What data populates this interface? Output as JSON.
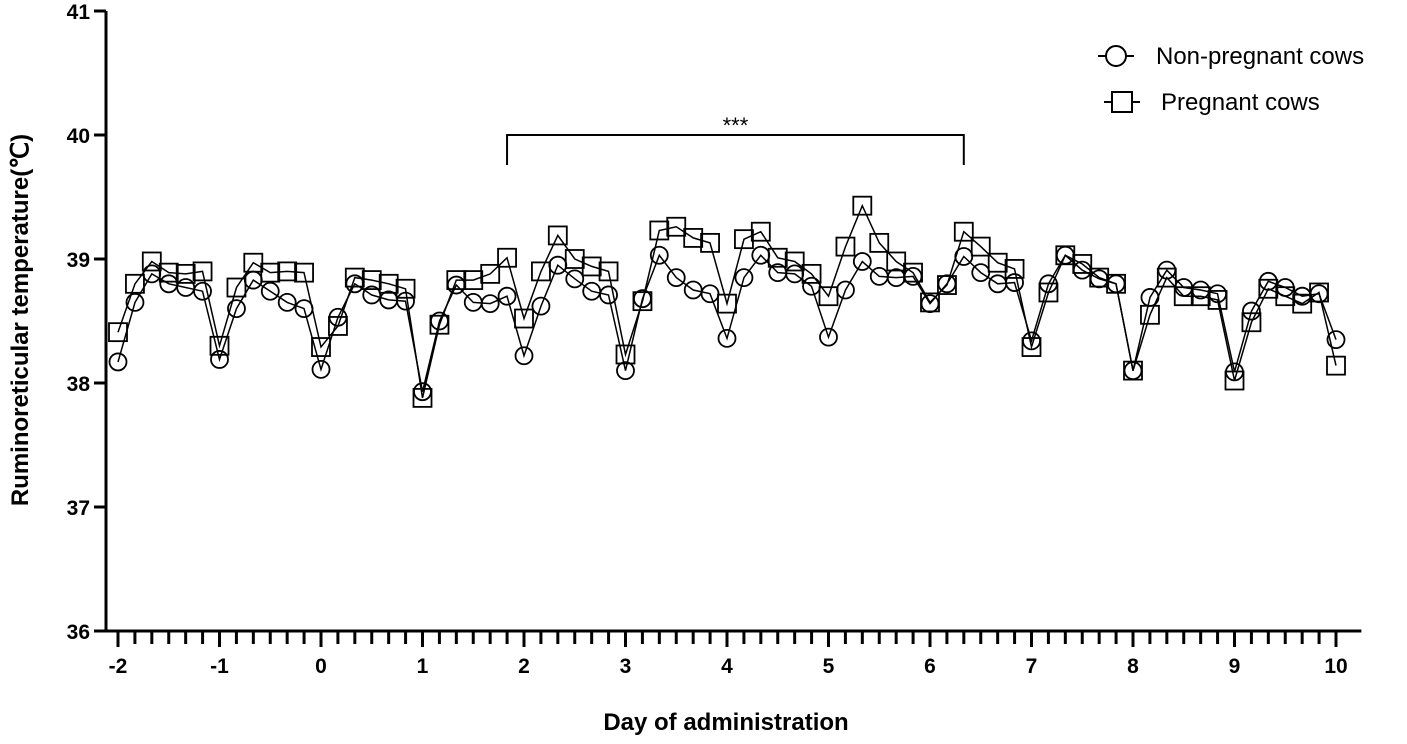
{
  "chart_data": {
    "type": "line",
    "title": "",
    "xlabel": "Day of administration",
    "ylabel": "Ruminoreticular temperature(℃)",
    "xlim": [
      -2.1,
      10.25
    ],
    "ylim": [
      36,
      41
    ],
    "xticks_major": [
      -2,
      -1,
      0,
      1,
      2,
      3,
      4,
      5,
      6,
      7,
      8,
      9,
      10
    ],
    "xtick_labels": [
      "-2",
      "-1",
      "0",
      "1",
      "2",
      "3",
      "4",
      "5",
      "6",
      "7",
      "8",
      "9",
      "10"
    ],
    "yticks": [
      36,
      37,
      38,
      39,
      40,
      41
    ],
    "ytick_labels": [
      "36",
      "37",
      "38",
      "39",
      "40",
      "41"
    ],
    "legend_position": "top-right",
    "series": [
      {
        "name": "Non-pregnant cows",
        "marker": "circle",
        "x": [
          -2,
          -1.833,
          -1.667,
          -1.5,
          -1.333,
          -1.167,
          -1,
          -0.833,
          -0.667,
          -0.5,
          -0.333,
          -0.167,
          0,
          0.167,
          0.333,
          0.5,
          0.667,
          0.833,
          1,
          1.167,
          1.333,
          1.5,
          1.667,
          1.833,
          2,
          2.167,
          2.333,
          2.5,
          2.667,
          2.833,
          3,
          3.167,
          3.333,
          3.5,
          3.667,
          3.833,
          4,
          4.167,
          4.333,
          4.5,
          4.667,
          4.833,
          5,
          5.167,
          5.333,
          5.5,
          5.667,
          5.833,
          6,
          6.167,
          6.333,
          6.5,
          6.667,
          6.833,
          7,
          7.167,
          7.333,
          7.5,
          7.667,
          7.833,
          8,
          8.167,
          8.333,
          8.5,
          8.667,
          8.833,
          9,
          9.167,
          9.333,
          9.5,
          9.667,
          9.833,
          10
        ],
        "values": [
          38.17,
          38.65,
          38.88,
          38.8,
          38.77,
          38.74,
          38.19,
          38.6,
          38.83,
          38.74,
          38.65,
          38.6,
          38.11,
          38.53,
          38.8,
          38.71,
          38.67,
          38.66,
          37.93,
          38.5,
          38.79,
          38.65,
          38.64,
          38.7,
          38.22,
          38.62,
          38.95,
          38.84,
          38.74,
          38.71,
          38.1,
          38.68,
          39.03,
          38.85,
          38.75,
          38.72,
          38.36,
          38.85,
          39.03,
          38.89,
          38.88,
          38.78,
          38.37,
          38.75,
          38.98,
          38.86,
          38.85,
          38.86,
          38.64,
          38.8,
          39.02,
          38.89,
          38.8,
          38.81,
          38.34,
          38.8,
          39.03,
          38.91,
          38.84,
          38.8,
          38.1,
          38.69,
          38.91,
          38.77,
          38.75,
          38.72,
          38.09,
          38.58,
          38.82,
          38.77,
          38.7,
          38.72,
          38.35
        ]
      },
      {
        "name": "Pregnant cows",
        "marker": "square",
        "x": [
          -2,
          -1.833,
          -1.667,
          -1.5,
          -1.333,
          -1.167,
          -1,
          -0.833,
          -0.667,
          -0.5,
          -0.333,
          -0.167,
          0,
          0.167,
          0.333,
          0.5,
          0.667,
          0.833,
          1,
          1.167,
          1.333,
          1.5,
          1.667,
          1.833,
          2,
          2.167,
          2.333,
          2.5,
          2.667,
          2.833,
          3,
          3.167,
          3.333,
          3.5,
          3.667,
          3.833,
          4,
          4.167,
          4.333,
          4.5,
          4.667,
          4.833,
          5,
          5.167,
          5.333,
          5.5,
          5.667,
          5.833,
          6,
          6.167,
          6.333,
          6.5,
          6.667,
          6.833,
          7,
          7.167,
          7.333,
          7.5,
          7.667,
          7.833,
          8,
          8.167,
          8.333,
          8.5,
          8.667,
          8.833,
          9,
          9.167,
          9.333,
          9.5,
          9.667,
          9.833,
          10
        ],
        "values": [
          38.41,
          38.8,
          38.98,
          38.89,
          38.88,
          38.9,
          38.3,
          38.77,
          38.97,
          38.89,
          38.9,
          38.89,
          38.29,
          38.46,
          38.85,
          38.83,
          38.8,
          38.76,
          37.88,
          38.47,
          38.83,
          38.83,
          38.88,
          39.01,
          38.52,
          38.9,
          39.19,
          39.0,
          38.94,
          38.9,
          38.23,
          38.66,
          39.23,
          39.26,
          39.17,
          39.13,
          38.64,
          39.16,
          39.22,
          39.01,
          38.98,
          38.88,
          38.7,
          39.1,
          39.43,
          39.13,
          38.98,
          38.89,
          38.65,
          38.79,
          39.22,
          39.1,
          38.97,
          38.92,
          38.29,
          38.73,
          39.03,
          38.96,
          38.85,
          38.8,
          38.1,
          38.55,
          38.85,
          38.7,
          38.7,
          38.67,
          38.02,
          38.49,
          38.76,
          38.7,
          38.64,
          38.73,
          38.14
        ]
      }
    ],
    "significance": {
      "label": "***",
      "x_start": 1.833,
      "x_end": 6.333,
      "y": 40
    }
  }
}
